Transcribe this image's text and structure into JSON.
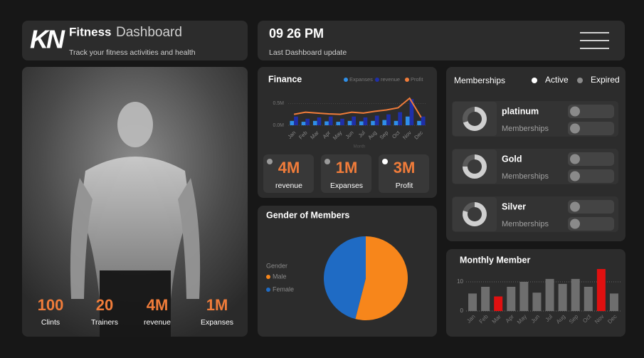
{
  "header": {
    "logo": "KN",
    "title": "Fitness",
    "title_accent": "Dashboard",
    "subtitle": "Track your fitness activities and health"
  },
  "clock": {
    "time": "09 26 PM",
    "caption": "Last Dashboard update"
  },
  "hero_stats": [
    {
      "value": "100",
      "label": "Clints"
    },
    {
      "value": "20",
      "label": "Trainers"
    },
    {
      "value": "4M",
      "label": "revenue"
    },
    {
      "value": "1M",
      "label": "Expanses"
    }
  ],
  "finance": {
    "type": "bar",
    "title": "Finance",
    "x_label": "Month",
    "categories": [
      "Jan",
      "Feb",
      "Mar",
      "Apr",
      "May",
      "Jun",
      "Jul",
      "Aug",
      "Sep",
      "Oct",
      "Nov",
      "Dec"
    ],
    "ylim": [
      0,
      0.75
    ],
    "yticks": [
      {
        "value": 0,
        "label": "0.0M"
      },
      {
        "value": 0.5,
        "label": "0.5M"
      }
    ],
    "series": [
      {
        "name": "Expanses",
        "color": "#2f8fe8",
        "kind": "bar",
        "values": [
          0.1,
          0.08,
          0.1,
          0.09,
          0.08,
          0.1,
          0.09,
          0.1,
          0.12,
          0.1,
          0.2,
          0.1
        ]
      },
      {
        "name": "revenue",
        "color": "#1f2fa8",
        "kind": "bar",
        "values": [
          0.2,
          0.15,
          0.18,
          0.2,
          0.15,
          0.2,
          0.18,
          0.22,
          0.25,
          0.3,
          0.6,
          0.2
        ]
      },
      {
        "name": "Profit",
        "color": "#f07c3a",
        "kind": "line",
        "values": [
          0.25,
          0.3,
          0.28,
          0.26,
          0.25,
          0.3,
          0.28,
          0.32,
          0.35,
          0.4,
          0.62,
          0.18
        ]
      }
    ]
  },
  "kpis": [
    {
      "value": "4M",
      "label": "revenue"
    },
    {
      "value": "1M",
      "label": "Expanses"
    },
    {
      "value": "3M",
      "label": "Profit"
    }
  ],
  "gender": {
    "type": "pie",
    "title": "Gender of Members",
    "legend_title": "Gender",
    "categories": [
      "Male",
      "Female"
    ],
    "values": [
      54,
      46
    ],
    "colors": [
      "#f7861b",
      "#1f6bc4"
    ]
  },
  "memberships": {
    "title": "Memberships",
    "legend": [
      {
        "name": "Active",
        "color": "#ffffff"
      },
      {
        "name": "Expired",
        "color": "#8a8a8a"
      }
    ],
    "rows": [
      {
        "name": "platinum",
        "caption": "Memberships",
        "values": [
          70,
          30
        ]
      },
      {
        "name": "Gold",
        "caption": "Memberships",
        "values": [
          75,
          25
        ]
      },
      {
        "name": "Silver",
        "caption": "Memberships",
        "values": [
          80,
          20
        ]
      }
    ]
  },
  "monthly": {
    "type": "bar",
    "title": "Monthly Member",
    "categories": [
      "Jan",
      "Feb",
      "Mar",
      "Apr",
      "May",
      "Jun",
      "Jul",
      "Aug",
      "Sep",
      "Oct",
      "Nov",
      "Dec"
    ],
    "values": [
      6,
      8.3,
      5,
      8.3,
      10,
      6.3,
      11,
      9.3,
      11,
      8.3,
      14.4,
      6
    ],
    "colors": [
      "#6e6e6e",
      "#6e6e6e",
      "#e01010",
      "#6e6e6e",
      "#6e6e6e",
      "#6e6e6e",
      "#6e6e6e",
      "#6e6e6e",
      "#6e6e6e",
      "#6e6e6e",
      "#e01010",
      "#6e6e6e"
    ],
    "ylim": [
      0,
      15
    ],
    "yticks": [
      0,
      10
    ],
    "grid": true
  }
}
